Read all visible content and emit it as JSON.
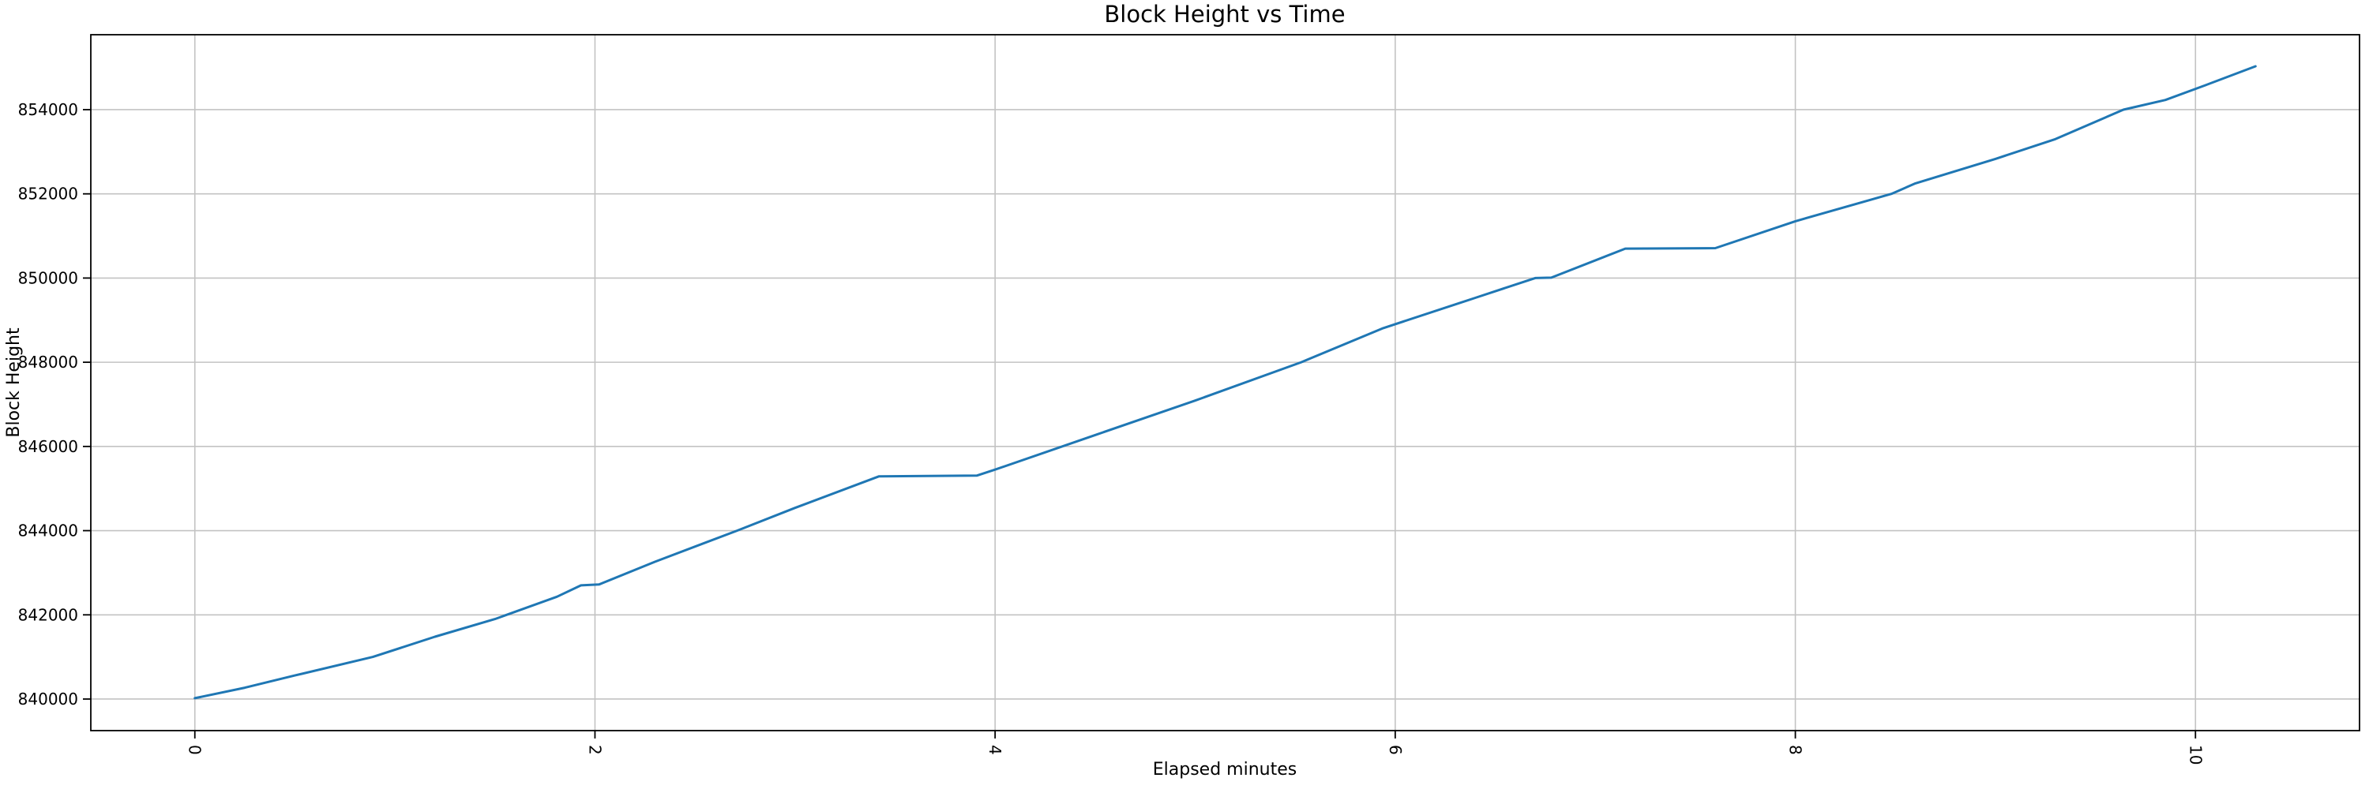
{
  "chart_data": {
    "type": "line",
    "title": "Block Height vs Time",
    "xlabel": "Elapsed minutes",
    "ylabel": "Block Height",
    "grid": true,
    "legend": "none",
    "line_color": "#1f77b4",
    "grid_color": "#c3c3c3",
    "spine_color": "#000000",
    "background_color": "#ffffff",
    "xlim": [
      -0.52,
      10.82
    ],
    "ylim": [
      839250,
      855780
    ],
    "xticks": {
      "values": [
        0,
        2,
        4,
        6,
        8,
        10
      ],
      "labels": [
        "0",
        "2",
        "4",
        "6",
        "8",
        "10"
      ],
      "rotation_deg": 90
    },
    "yticks": {
      "values": [
        840000,
        842000,
        844000,
        846000,
        848000,
        850000,
        852000,
        854000
      ],
      "labels": [
        "840000",
        "842000",
        "844000",
        "846000",
        "848000",
        "850000",
        "852000",
        "854000"
      ]
    },
    "series": [
      {
        "name": "block-height",
        "x": [
          0,
          0.25,
          0.5,
          0.89,
          1.2,
          1.5,
          1.81,
          1.93,
          2.02,
          2.3,
          2.71,
          3.0,
          3.42,
          3.91,
          4.0,
          4.5,
          5.0,
          5.53,
          5.94,
          6.4,
          6.7,
          6.78,
          7.15,
          7.6,
          8.0,
          8.48,
          8.6,
          9.0,
          9.3,
          9.64,
          9.85,
          10.05,
          10.3
        ],
        "y": [
          840020,
          840270,
          840560,
          841000,
          841480,
          841900,
          842430,
          842700,
          842720,
          843260,
          844000,
          844540,
          845290,
          845310,
          845450,
          846270,
          847090,
          848000,
          848810,
          849530,
          850000,
          850010,
          850700,
          850710,
          851350,
          852000,
          852250,
          852830,
          853300,
          854000,
          854230,
          854580,
          855030
        ]
      }
    ]
  }
}
